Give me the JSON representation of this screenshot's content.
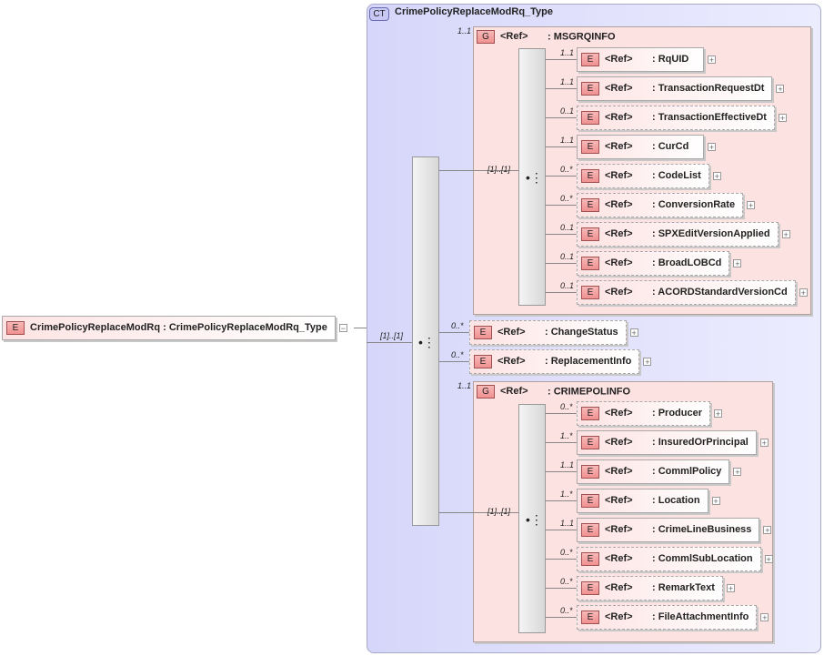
{
  "root": {
    "badge": "E",
    "name": "CrimePolicyReplaceModRq",
    "type": ": CrimePolicyReplaceModRq_Type",
    "collapse": "−"
  },
  "complex_type": {
    "badge": "CT",
    "name": "CrimePolicyReplaceModRq_Type"
  },
  "sequence": {
    "multiplicity": "[1]..[1]"
  },
  "groups": [
    {
      "badge": "G",
      "ref": "<Ref>",
      "name": ": MSGRQINFO",
      "multiplicity": "1..1",
      "seq_multiplicity": "[1]..[1]",
      "children": [
        {
          "mult": "1..1",
          "name": ": RqUID",
          "optional": false
        },
        {
          "mult": "1..1",
          "name": ": TransactionRequestDt",
          "optional": false
        },
        {
          "mult": "0..1",
          "name": ": TransactionEffectiveDt",
          "optional": true
        },
        {
          "mult": "1..1",
          "name": ": CurCd",
          "optional": false
        },
        {
          "mult": "0..*",
          "name": ": CodeList",
          "optional": true
        },
        {
          "mult": "0..*",
          "name": ": ConversionRate",
          "optional": true
        },
        {
          "mult": "0..1",
          "name": ": SPXEditVersionApplied",
          "optional": true
        },
        {
          "mult": "0..1",
          "name": ": BroadLOBCd",
          "optional": true
        },
        {
          "mult": "0..1",
          "name": ": ACORDStandardVersionCd",
          "optional": true
        }
      ]
    },
    {
      "badge": "G",
      "ref": "<Ref>",
      "name": ": CRIMEPOLINFO",
      "multiplicity": "1..1",
      "seq_multiplicity": "[1]..[1]",
      "children": [
        {
          "mult": "0..*",
          "name": ": Producer",
          "optional": true
        },
        {
          "mult": "1..*",
          "name": ": InsuredOrPrincipal",
          "optional": false
        },
        {
          "mult": "1..1",
          "name": ": CommlPolicy",
          "optional": false
        },
        {
          "mult": "1..*",
          "name": ": Location",
          "optional": false
        },
        {
          "mult": "1..1",
          "name": ": CrimeLineBusiness",
          "optional": false
        },
        {
          "mult": "0..*",
          "name": ": CommlSubLocation",
          "optional": true
        },
        {
          "mult": "0..*",
          "name": ": RemarkText",
          "optional": true
        },
        {
          "mult": "0..*",
          "name": ": FileAttachmentInfo",
          "optional": true
        }
      ]
    }
  ],
  "elements": [
    {
      "mult": "0..*",
      "ref": "<Ref>",
      "name": ": ChangeStatus",
      "optional": true
    },
    {
      "mult": "0..*",
      "ref": "<Ref>",
      "name": ": ReplacementInfo",
      "optional": true
    }
  ],
  "labels": {
    "element_badge": "E",
    "ref": "<Ref>",
    "expand": "+"
  }
}
